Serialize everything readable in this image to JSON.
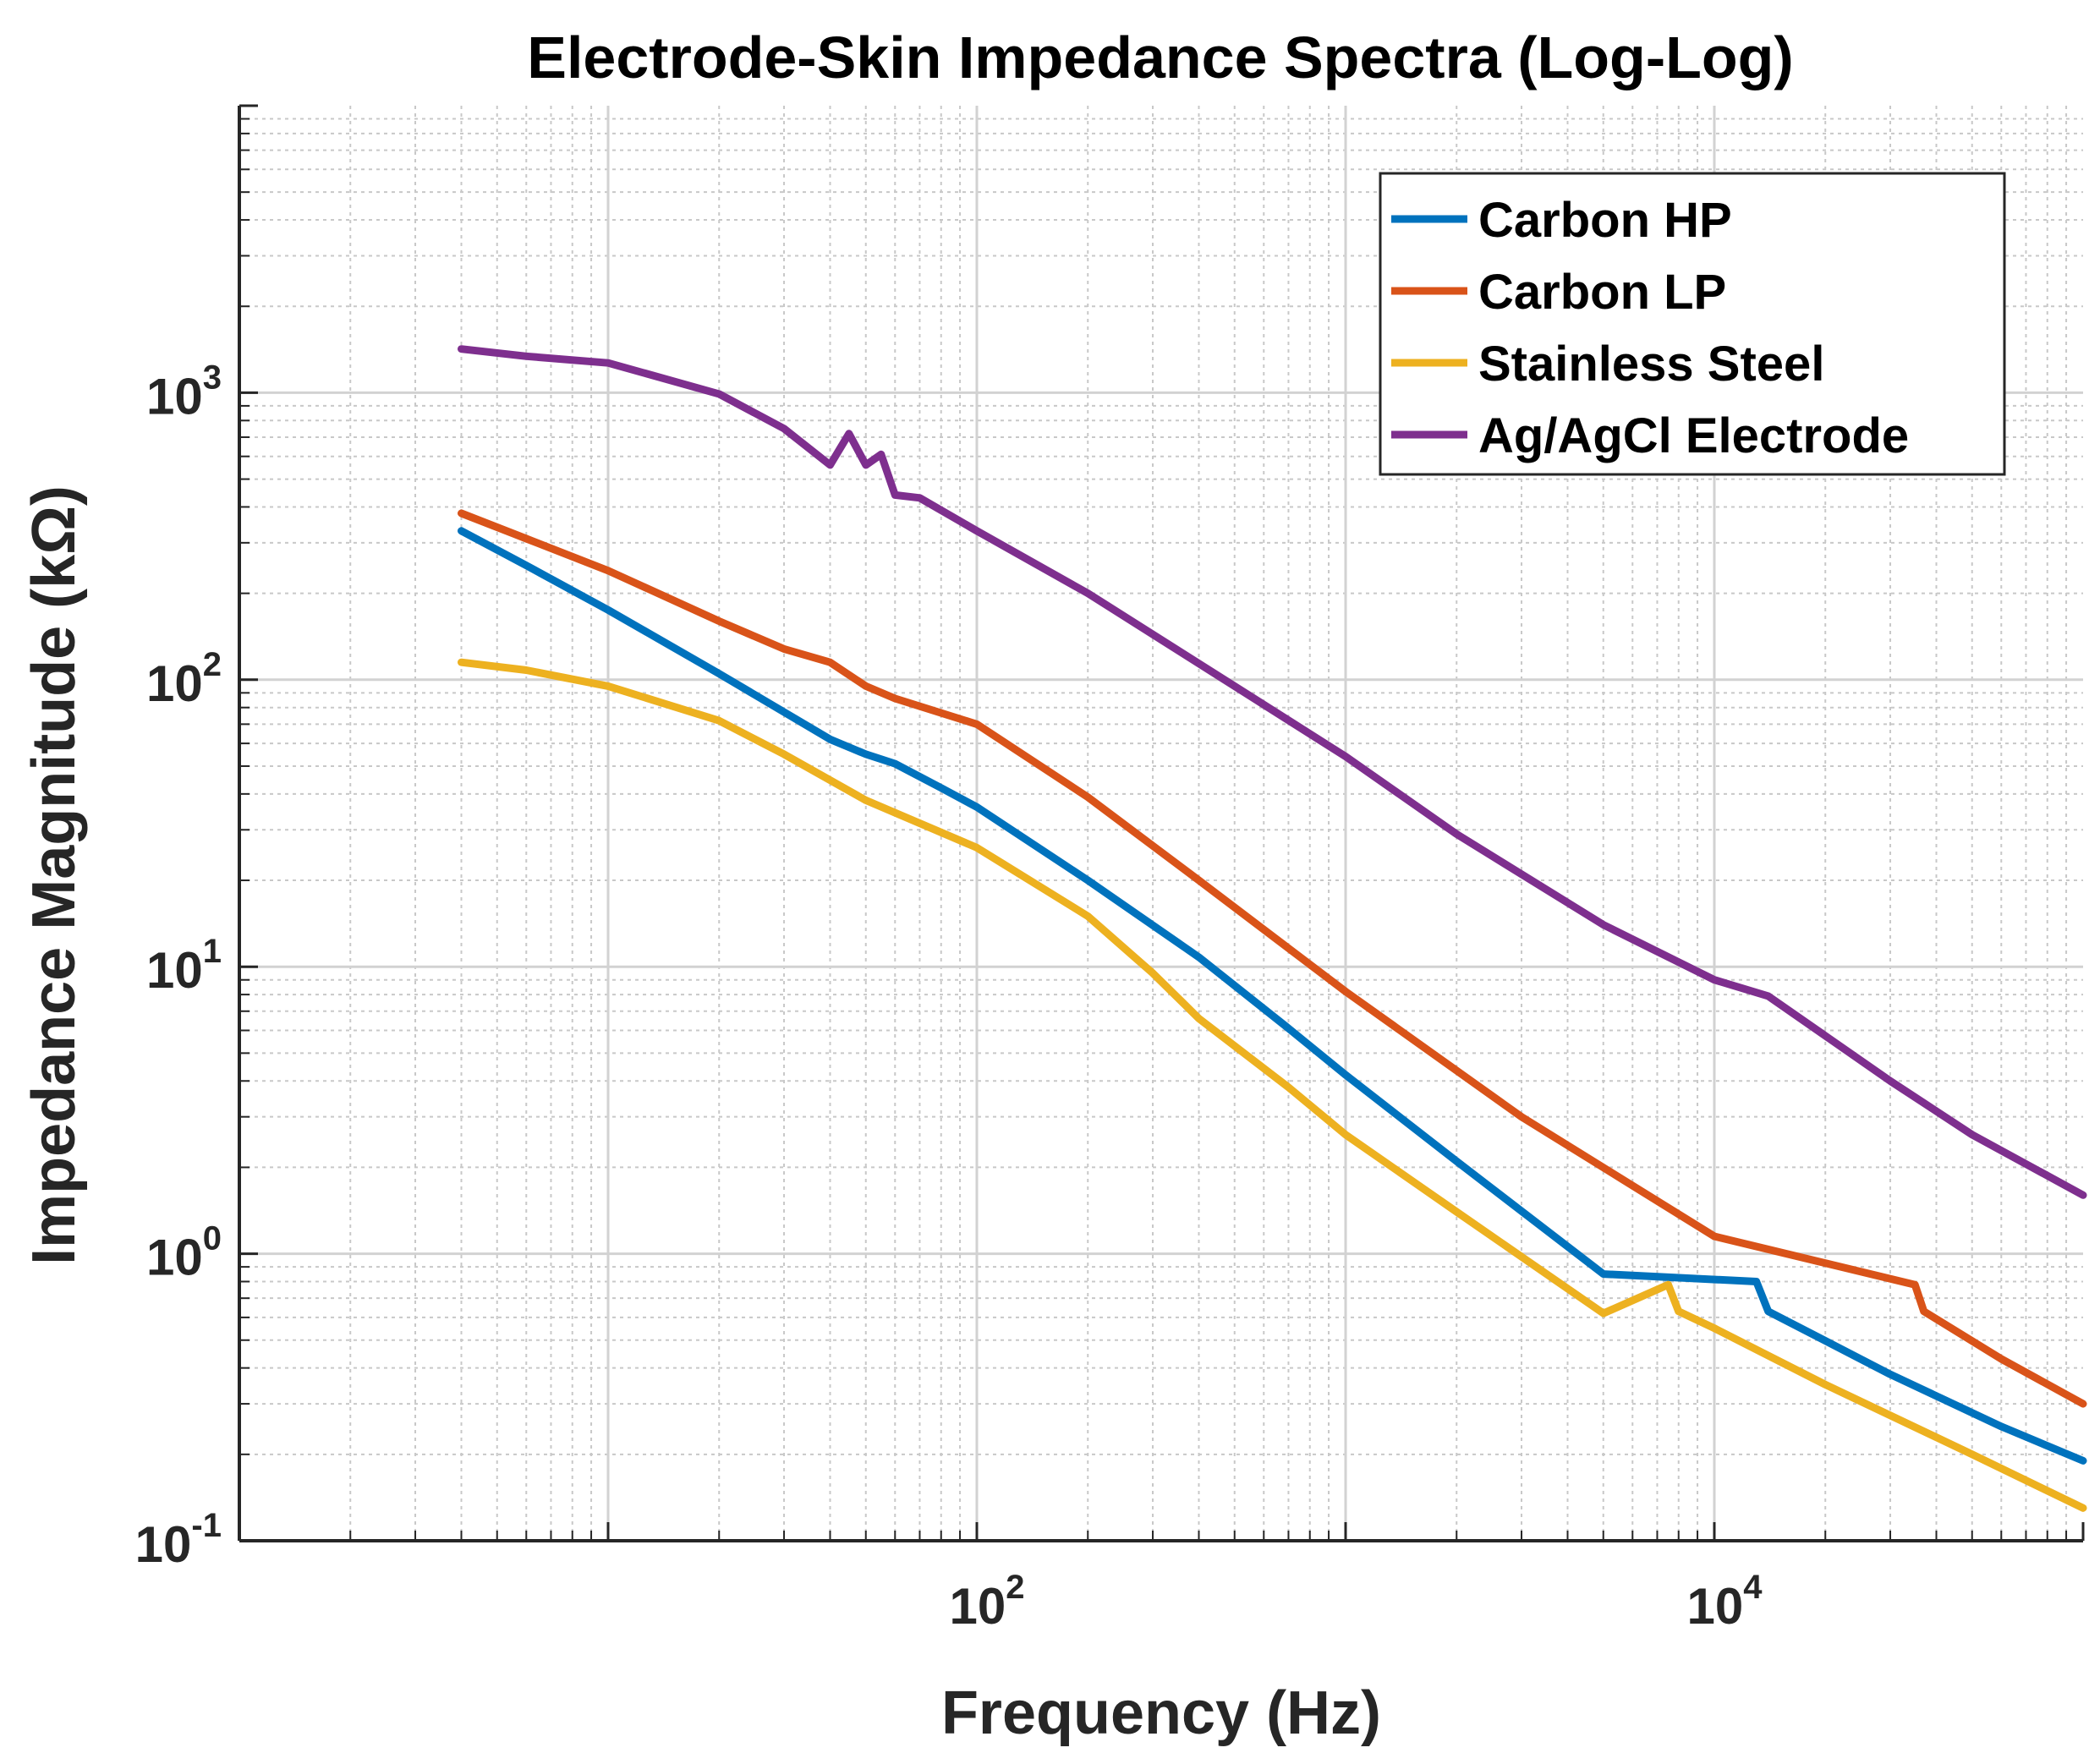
{
  "chart_data": {
    "type": "line",
    "title": "Electrode-Skin Impedance Spectra (Log-Log)",
    "xlabel": "Frequency (Hz)",
    "ylabel": "Impedance Magnitude (kΩ)",
    "xscale": "log",
    "yscale": "log",
    "xlim": [
      1,
      100000
    ],
    "ylim": [
      0.1,
      10000
    ],
    "grid": true,
    "minor_grid": true,
    "legend_position": "top-right",
    "x_ticks": [
      {
        "value": 100,
        "base": "10",
        "exp": "2"
      },
      {
        "value": 10000,
        "base": "10",
        "exp": "4"
      }
    ],
    "y_ticks": [
      {
        "value": 0.1,
        "base": "10",
        "exp": "-1"
      },
      {
        "value": 1,
        "base": "10",
        "exp": "0"
      },
      {
        "value": 10,
        "base": "10",
        "exp": "1"
      },
      {
        "value": 100,
        "base": "10",
        "exp": "2"
      },
      {
        "value": 1000,
        "base": "10",
        "exp": "3"
      }
    ],
    "series": [
      {
        "name": "Carbon HP",
        "color": "#0072BD",
        "x": [
          4,
          6,
          10,
          20,
          40,
          50,
          60,
          80,
          100,
          200,
          400,
          700,
          1000,
          2000,
          5000,
          13000,
          14000,
          30000,
          60000,
          100000
        ],
        "y": [
          330,
          250,
          175,
          105,
          62,
          55,
          51,
          42,
          36,
          20,
          10.8,
          6.1,
          4.2,
          2.1,
          0.85,
          0.8,
          0.63,
          0.38,
          0.25,
          0.19
        ]
      },
      {
        "name": "Carbon LP",
        "color": "#D95319",
        "x": [
          4,
          6,
          10,
          20,
          30,
          40,
          50,
          60,
          100,
          200,
          400,
          1000,
          3000,
          10000,
          35000,
          37000,
          60000,
          100000
        ],
        "y": [
          380,
          310,
          240,
          160,
          128,
          115,
          95,
          86,
          70,
          39,
          20,
          8.2,
          3.0,
          1.15,
          0.78,
          0.63,
          0.43,
          0.3
        ]
      },
      {
        "name": "Stainless Steel",
        "color": "#EDB120",
        "x": [
          4,
          6,
          10,
          20,
          30,
          50,
          100,
          200,
          300,
          400,
          700,
          1000,
          2000,
          5000,
          7500,
          8000,
          10000,
          20000,
          50000,
          100000
        ],
        "y": [
          115,
          108,
          95,
          72,
          55,
          38,
          26,
          15,
          9.5,
          6.6,
          3.8,
          2.6,
          1.4,
          0.62,
          0.78,
          0.63,
          0.55,
          0.35,
          0.2,
          0.13
        ]
      },
      {
        "name": "Ag/AgCl Electrode",
        "color": "#7E2F8E",
        "x": [
          4,
          6,
          10,
          20,
          30,
          40,
          45,
          50,
          55,
          60,
          70,
          100,
          200,
          500,
          1000,
          2000,
          5000,
          10000,
          14000,
          30000,
          50000,
          100000
        ],
        "y": [
          1420,
          1340,
          1270,
          990,
          750,
          560,
          720,
          560,
          610,
          440,
          430,
          330,
          200,
          95,
          54,
          29,
          14,
          9.0,
          7.9,
          4.0,
          2.6,
          1.6
        ]
      }
    ]
  }
}
